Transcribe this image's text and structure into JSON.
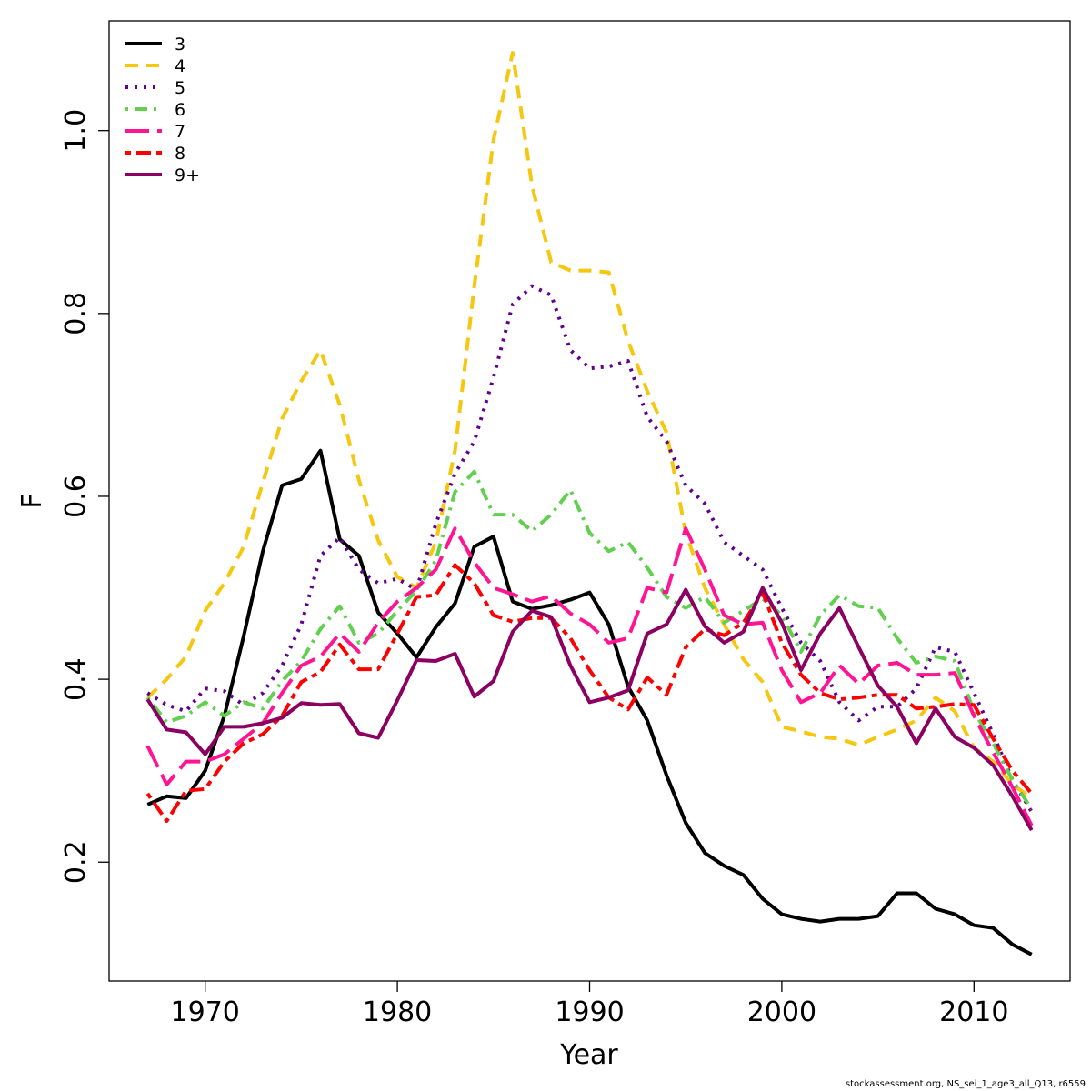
{
  "chart_data": {
    "type": "line",
    "title": "",
    "xlabel": "Year",
    "ylabel": "F",
    "xlim": [
      1965,
      2015
    ],
    "ylim": [
      0.07,
      1.12
    ],
    "xticks": [
      1970,
      1980,
      1990,
      2000,
      2010
    ],
    "yticks": [
      0.2,
      0.4,
      0.6,
      0.8,
      1.0
    ],
    "xtick_labels": [
      "1970",
      "1980",
      "1990",
      "2000",
      "2010"
    ],
    "ytick_labels": [
      "0.2",
      "0.4",
      "0.6",
      "0.8",
      "1.0"
    ],
    "grid": false,
    "legend_position": "top-left",
    "x": [
      1967,
      1968,
      1969,
      1970,
      1971,
      1972,
      1973,
      1974,
      1975,
      1976,
      1977,
      1978,
      1979,
      1980,
      1981,
      1982,
      1983,
      1984,
      1985,
      1986,
      1987,
      1988,
      1989,
      1990,
      1991,
      1992,
      1993,
      1994,
      1995,
      1996,
      1997,
      1998,
      1999,
      2000,
      2001,
      2002,
      2003,
      2004,
      2005,
      2006,
      2007,
      2008,
      2009,
      2010,
      2011,
      2012,
      2013
    ],
    "series": [
      {
        "name": "3",
        "color": "#000000",
        "dash": "solid",
        "values": [
          0.263,
          0.272,
          0.27,
          0.3,
          0.36,
          0.447,
          0.54,
          0.612,
          0.619,
          0.65,
          0.553,
          0.535,
          0.473,
          0.45,
          0.424,
          0.457,
          0.483,
          0.545,
          0.556,
          0.485,
          0.477,
          0.481,
          0.487,
          0.495,
          0.46,
          0.392,
          0.355,
          0.295,
          0.243,
          0.21,
          0.196,
          0.186,
          0.16,
          0.143,
          0.138,
          0.135,
          0.138,
          0.138,
          0.141,
          0.166,
          0.166,
          0.149,
          0.143,
          0.131,
          0.128,
          0.11,
          0.099
        ]
      },
      {
        "name": "4",
        "color": "#F5C710",
        "dash": "dashed",
        "values": [
          0.38,
          0.4,
          0.425,
          0.475,
          0.505,
          0.545,
          0.615,
          0.685,
          0.726,
          0.76,
          0.7,
          0.618,
          0.552,
          0.512,
          0.5,
          0.55,
          0.65,
          0.83,
          0.99,
          1.085,
          0.94,
          0.856,
          0.847,
          0.847,
          0.845,
          0.77,
          0.715,
          0.67,
          0.56,
          0.5,
          0.46,
          0.422,
          0.397,
          0.348,
          0.343,
          0.337,
          0.335,
          0.328,
          0.337,
          0.345,
          0.355,
          0.38,
          0.365,
          0.325,
          0.31,
          0.285,
          0.27
        ]
      },
      {
        "name": "5",
        "color": "#61008F",
        "dash": "dotted",
        "values": [
          0.385,
          0.372,
          0.365,
          0.39,
          0.387,
          0.372,
          0.385,
          0.415,
          0.46,
          0.535,
          0.555,
          0.52,
          0.505,
          0.51,
          0.498,
          0.57,
          0.625,
          0.66,
          0.73,
          0.81,
          0.83,
          0.82,
          0.76,
          0.74,
          0.742,
          0.748,
          0.687,
          0.66,
          0.612,
          0.592,
          0.55,
          0.535,
          0.52,
          0.478,
          0.44,
          0.42,
          0.375,
          0.355,
          0.37,
          0.37,
          0.39,
          0.435,
          0.43,
          0.385,
          0.34,
          0.29,
          0.255
        ]
      },
      {
        "name": "6",
        "color": "#61D04F",
        "dash": "dotdash",
        "values": [
          0.38,
          0.353,
          0.36,
          0.375,
          0.36,
          0.375,
          0.368,
          0.398,
          0.42,
          0.455,
          0.48,
          0.44,
          0.45,
          0.475,
          0.497,
          0.53,
          0.605,
          0.627,
          0.58,
          0.58,
          0.562,
          0.58,
          0.607,
          0.56,
          0.54,
          0.55,
          0.522,
          0.49,
          0.478,
          0.49,
          0.462,
          0.475,
          0.488,
          0.47,
          0.43,
          0.47,
          0.492,
          0.48,
          0.478,
          0.445,
          0.418,
          0.425,
          0.42,
          0.365,
          0.33,
          0.29,
          0.258
        ]
      },
      {
        "name": "7",
        "color": "#FF1493",
        "dash": "longdash",
        "values": [
          0.327,
          0.285,
          0.31,
          0.31,
          0.318,
          0.335,
          0.352,
          0.385,
          0.415,
          0.425,
          0.45,
          0.43,
          0.462,
          0.485,
          0.5,
          0.52,
          0.565,
          0.528,
          0.5,
          0.493,
          0.485,
          0.491,
          0.472,
          0.46,
          0.44,
          0.445,
          0.5,
          0.495,
          0.565,
          0.52,
          0.47,
          0.46,
          0.462,
          0.41,
          0.375,
          0.385,
          0.415,
          0.395,
          0.415,
          0.418,
          0.405,
          0.405,
          0.407,
          0.36,
          0.32,
          0.282,
          0.24
        ]
      },
      {
        "name": "8",
        "color": "#FF0000",
        "dash": "twodash",
        "values": [
          0.275,
          0.245,
          0.278,
          0.28,
          0.31,
          0.33,
          0.34,
          0.36,
          0.397,
          0.408,
          0.438,
          0.411,
          0.411,
          0.45,
          0.49,
          0.492,
          0.525,
          0.505,
          0.47,
          0.463,
          0.467,
          0.467,
          0.445,
          0.41,
          0.38,
          0.367,
          0.402,
          0.383,
          0.435,
          0.455,
          0.448,
          0.462,
          0.495,
          0.44,
          0.405,
          0.385,
          0.378,
          0.38,
          0.383,
          0.383,
          0.368,
          0.37,
          0.373,
          0.372,
          0.335,
          0.3,
          0.275
        ]
      },
      {
        "name": "9+",
        "color": "#8B0060",
        "dash": "solid",
        "values": [
          0.378,
          0.345,
          0.342,
          0.318,
          0.348,
          0.348,
          0.352,
          0.358,
          0.374,
          0.372,
          0.373,
          0.341,
          0.336,
          0.377,
          0.421,
          0.42,
          0.428,
          0.381,
          0.398,
          0.452,
          0.475,
          0.468,
          0.415,
          0.375,
          0.38,
          0.388,
          0.45,
          0.46,
          0.498,
          0.458,
          0.44,
          0.452,
          0.5,
          0.462,
          0.41,
          0.45,
          0.478,
          0.435,
          0.393,
          0.37,
          0.33,
          0.368,
          0.337,
          0.325,
          0.306,
          0.272,
          0.235
        ]
      }
    ]
  },
  "footer": "stockassessment.org, NS_sei_1_age3_all_Q13, r6559"
}
